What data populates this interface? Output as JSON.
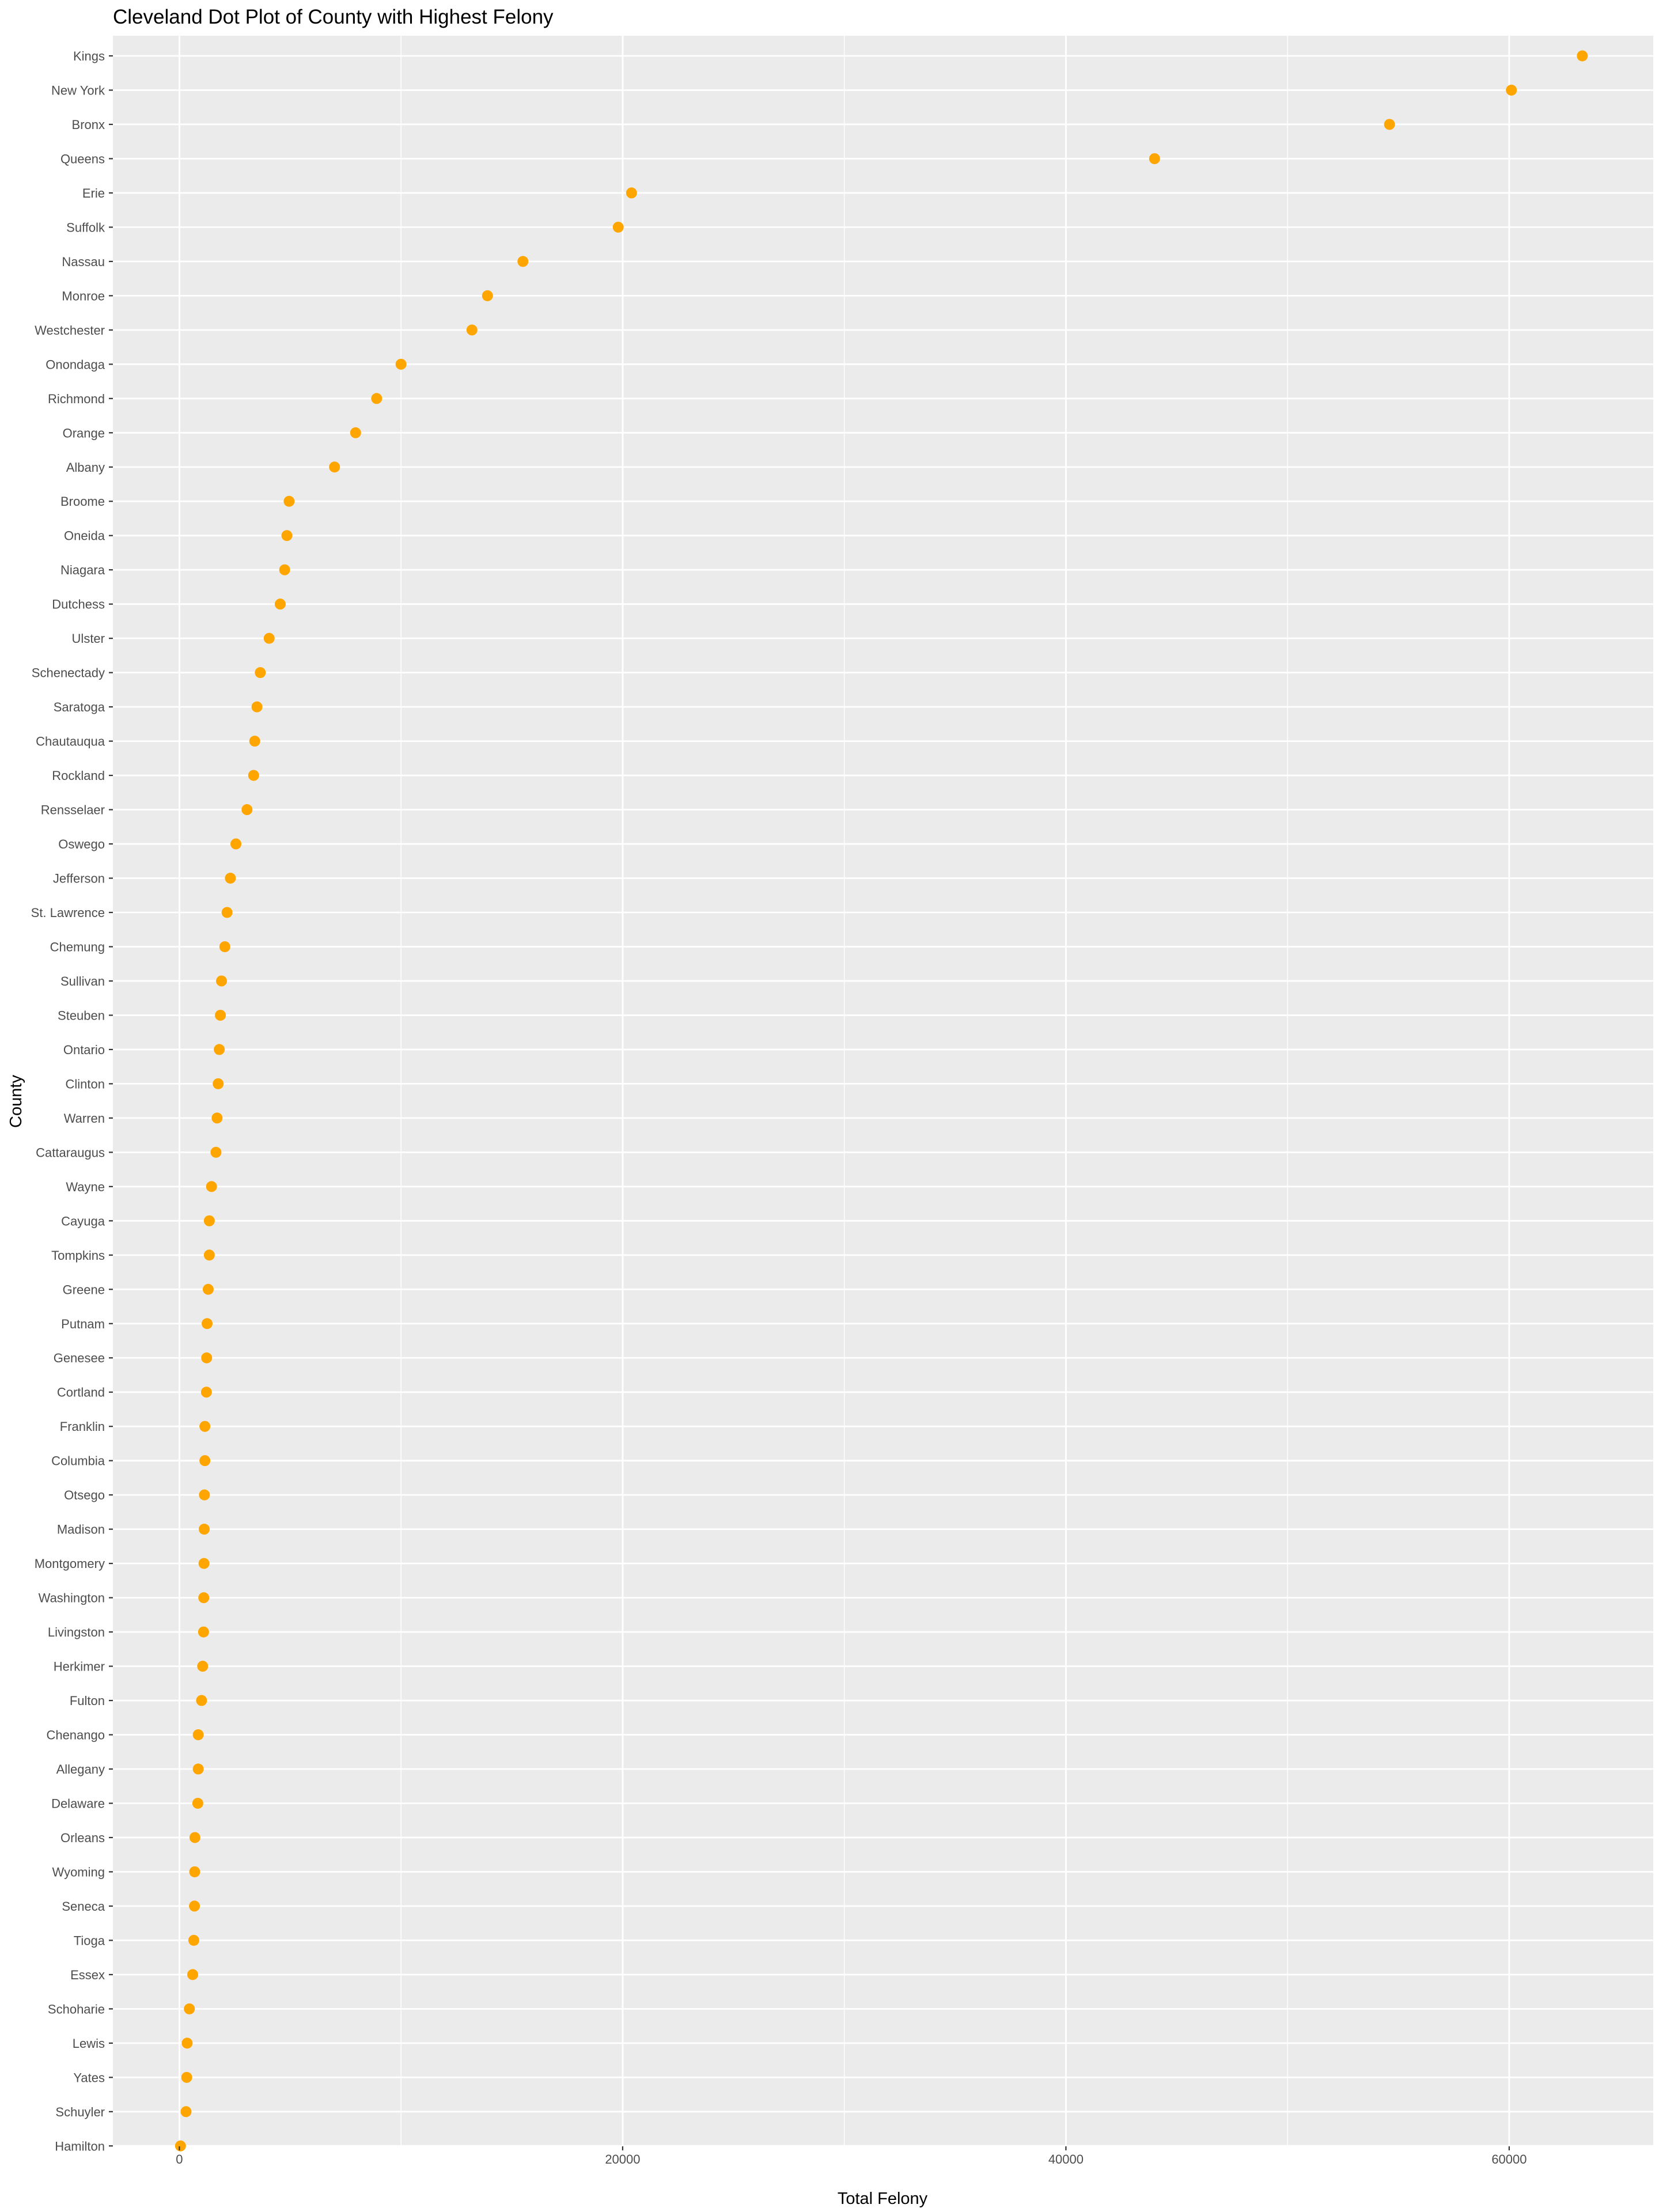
{
  "chart_data": {
    "type": "scatter",
    "title": "Cleveland Dot Plot of County with Highest Felony",
    "xlabel": "Total Felony",
    "ylabel": "County",
    "xlim": [
      -3000,
      66500
    ],
    "x_ticks": [
      0,
      20000,
      40000,
      60000
    ],
    "x_tick_labels": [
      "0",
      "20000",
      "40000",
      "60000"
    ],
    "grid": true,
    "legend": "none",
    "colors": {
      "panel": "#ebebeb",
      "grid": "#ffffff",
      "point": "#ffa500",
      "tick": "#333333"
    },
    "points": [
      {
        "county": "Kings",
        "value": 63300
      },
      {
        "county": "New York",
        "value": 60100
      },
      {
        "county": "Bronx",
        "value": 54600
      },
      {
        "county": "Queens",
        "value": 44000
      },
      {
        "county": "Erie",
        "value": 20400
      },
      {
        "county": "Suffolk",
        "value": 19800
      },
      {
        "county": "Nassau",
        "value": 15500
      },
      {
        "county": "Monroe",
        "value": 13900
      },
      {
        "county": "Westchester",
        "value": 13200
      },
      {
        "county": "Onondaga",
        "value": 10000
      },
      {
        "county": "Richmond",
        "value": 8900
      },
      {
        "county": "Orange",
        "value": 7950
      },
      {
        "county": "Albany",
        "value": 7000
      },
      {
        "county": "Broome",
        "value": 4950
      },
      {
        "county": "Oneida",
        "value": 4850
      },
      {
        "county": "Niagara",
        "value": 4750
      },
      {
        "county": "Dutchess",
        "value": 4550
      },
      {
        "county": "Ulster",
        "value": 4050
      },
      {
        "county": "Schenectady",
        "value": 3650
      },
      {
        "county": "Saratoga",
        "value": 3500
      },
      {
        "county": "Chautauqua",
        "value": 3400
      },
      {
        "county": "Rockland",
        "value": 3350
      },
      {
        "county": "Rensselaer",
        "value": 3050
      },
      {
        "county": "Oswego",
        "value": 2550
      },
      {
        "county": "Jefferson",
        "value": 2300
      },
      {
        "county": "St. Lawrence",
        "value": 2150
      },
      {
        "county": "Chemung",
        "value": 2050
      },
      {
        "county": "Sullivan",
        "value": 1900
      },
      {
        "county": "Steuben",
        "value": 1850
      },
      {
        "county": "Ontario",
        "value": 1800
      },
      {
        "county": "Clinton",
        "value": 1750
      },
      {
        "county": "Warren",
        "value": 1700
      },
      {
        "county": "Cattaraugus",
        "value": 1650
      },
      {
        "county": "Wayne",
        "value": 1450
      },
      {
        "county": "Cayuga",
        "value": 1350
      },
      {
        "county": "Tompkins",
        "value": 1350
      },
      {
        "county": "Greene",
        "value": 1300
      },
      {
        "county": "Putnam",
        "value": 1250
      },
      {
        "county": "Genesee",
        "value": 1230
      },
      {
        "county": "Cortland",
        "value": 1220
      },
      {
        "county": "Franklin",
        "value": 1150
      },
      {
        "county": "Columbia",
        "value": 1150
      },
      {
        "county": "Otsego",
        "value": 1130
      },
      {
        "county": "Madison",
        "value": 1120
      },
      {
        "county": "Montgomery",
        "value": 1110
      },
      {
        "county": "Washington",
        "value": 1100
      },
      {
        "county": "Livingston",
        "value": 1090
      },
      {
        "county": "Herkimer",
        "value": 1050
      },
      {
        "county": "Fulton",
        "value": 1000
      },
      {
        "county": "Chenango",
        "value": 850
      },
      {
        "county": "Allegany",
        "value": 850
      },
      {
        "county": "Delaware",
        "value": 830
      },
      {
        "county": "Orleans",
        "value": 700
      },
      {
        "county": "Wyoming",
        "value": 690
      },
      {
        "county": "Seneca",
        "value": 680
      },
      {
        "county": "Tioga",
        "value": 650
      },
      {
        "county": "Essex",
        "value": 600
      },
      {
        "county": "Schoharie",
        "value": 450
      },
      {
        "county": "Lewis",
        "value": 350
      },
      {
        "county": "Yates",
        "value": 330
      },
      {
        "county": "Schuyler",
        "value": 300
      },
      {
        "county": "Hamilton",
        "value": 50
      }
    ]
  }
}
